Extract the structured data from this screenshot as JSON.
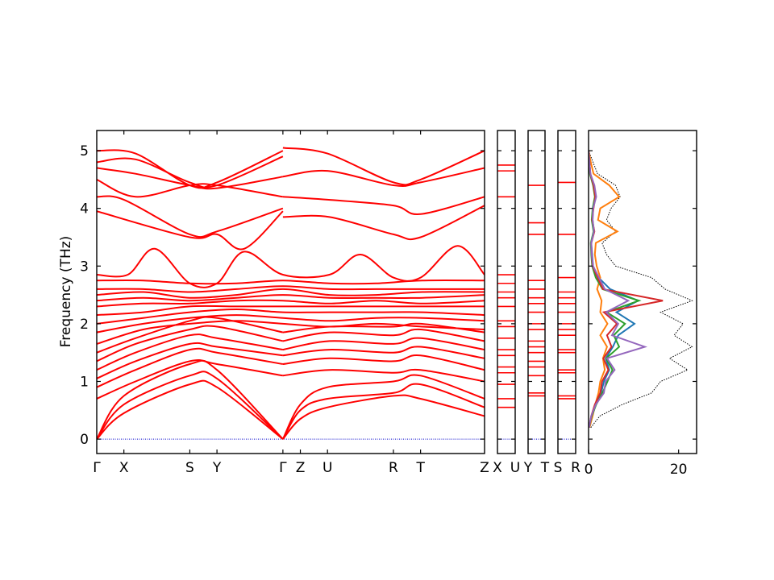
{
  "chart_data": {
    "type": "line",
    "ylabel": "Frequency (THz)",
    "ylim": [
      -0.25,
      5.35
    ],
    "yticks": [
      0,
      1,
      2,
      3,
      4,
      5
    ],
    "colors": {
      "bands": "#ff0000",
      "zero_line": "#0000cc",
      "dos_total": "#000000",
      "pdos": [
        "#1f77b4",
        "#ff7f0e",
        "#2ca02c",
        "#d62728",
        "#9467bd"
      ]
    },
    "band_panels": [
      {
        "labels": [
          "Γ",
          "X",
          "S",
          "Y",
          "Γ",
          "Z",
          "U",
          "R",
          "T",
          "Z"
        ],
        "label_pos": [
          0,
          0.07,
          0.24,
          0.31,
          0.48,
          0.525,
          0.595,
          0.765,
          0.835,
          1
        ]
      },
      {
        "labels": [
          "X",
          "U"
        ],
        "label_pos": [
          0,
          1
        ]
      },
      {
        "labels": [
          "Y",
          "T"
        ],
        "label_pos": [
          0,
          1
        ]
      },
      {
        "labels": [
          "S",
          "R"
        ],
        "label_pos": [
          0,
          1
        ]
      }
    ],
    "band_series": [
      {
        "k": [
          0,
          0.07,
          0.24,
          0.31,
          0.48
        ],
        "freq": [
          0.0,
          0.45,
          0.95,
          0.9,
          0.0
        ]
      },
      {
        "k": [
          0,
          0.07,
          0.24,
          0.31,
          0.48
        ],
        "freq": [
          0.0,
          0.6,
          1.1,
          1.05,
          0.0
        ]
      },
      {
        "k": [
          0,
          0.07,
          0.24,
          0.31,
          0.48
        ],
        "freq": [
          0.0,
          0.75,
          1.3,
          1.2,
          0.0
        ]
      },
      {
        "k": [
          0.48,
          0.525,
          0.595,
          0.765,
          0.835,
          1
        ],
        "freq": [
          0.0,
          0.35,
          0.55,
          0.75,
          0.7,
          0.4
        ]
      },
      {
        "k": [
          0.48,
          0.525,
          0.595,
          0.765,
          0.835,
          1
        ],
        "freq": [
          0.0,
          0.5,
          0.7,
          0.8,
          0.95,
          0.55
        ]
      },
      {
        "k": [
          0.48,
          0.525,
          0.595,
          0.765,
          0.835,
          1
        ],
        "freq": [
          0.0,
          0.6,
          0.9,
          1.0,
          1.1,
          0.7
        ]
      },
      {
        "k": [
          0,
          0.1,
          0.24,
          0.31,
          0.48
        ],
        "freq": [
          0.7,
          1.0,
          1.35,
          1.3,
          1.1
        ]
      },
      {
        "k": [
          0,
          0.1,
          0.24,
          0.31,
          0.48
        ],
        "freq": [
          0.9,
          1.2,
          1.55,
          1.5,
          1.3
        ]
      },
      {
        "k": [
          0,
          0.1,
          0.24,
          0.31,
          0.48
        ],
        "freq": [
          1.05,
          1.35,
          1.65,
          1.6,
          1.45
        ]
      },
      {
        "k": [
          0,
          0.1,
          0.24,
          0.31,
          0.48
        ],
        "freq": [
          1.2,
          1.5,
          1.8,
          1.75,
          1.55
        ]
      },
      {
        "k": [
          0,
          0.1,
          0.24,
          0.31,
          0.48
        ],
        "freq": [
          1.35,
          1.65,
          1.9,
          1.95,
          1.7
        ]
      },
      {
        "k": [
          0,
          0.1,
          0.24,
          0.31,
          0.48
        ],
        "freq": [
          1.5,
          1.75,
          2.05,
          2.1,
          1.85
        ]
      },
      {
        "k": [
          0.48,
          0.6,
          0.765,
          0.835,
          1
        ],
        "freq": [
          1.1,
          1.2,
          1.15,
          1.2,
          1.0
        ]
      },
      {
        "k": [
          0.48,
          0.6,
          0.765,
          0.835,
          1
        ],
        "freq": [
          1.3,
          1.4,
          1.35,
          1.45,
          1.2
        ]
      },
      {
        "k": [
          0.48,
          0.6,
          0.765,
          0.835,
          1
        ],
        "freq": [
          1.45,
          1.55,
          1.5,
          1.6,
          1.4
        ]
      },
      {
        "k": [
          0.48,
          0.6,
          0.765,
          0.835,
          1
        ],
        "freq": [
          1.55,
          1.7,
          1.65,
          1.75,
          1.55
        ]
      },
      {
        "k": [
          0.48,
          0.6,
          0.765,
          0.835,
          1
        ],
        "freq": [
          1.7,
          1.85,
          1.8,
          1.9,
          1.7
        ]
      },
      {
        "k": [
          0.48,
          0.6,
          0.765,
          0.835,
          1
        ],
        "freq": [
          1.85,
          1.95,
          1.95,
          2.0,
          1.85
        ]
      },
      {
        "k": [
          0,
          0.12,
          0.24,
          0.36,
          0.48,
          0.6,
          0.72,
          0.84,
          1
        ],
        "freq": [
          1.65,
          1.9,
          2.0,
          2.05,
          2.0,
          1.95,
          2.0,
          1.95,
          1.9
        ]
      },
      {
        "k": [
          0,
          0.12,
          0.24,
          0.36,
          0.48,
          0.6,
          0.72,
          0.84,
          1
        ],
        "freq": [
          1.85,
          2.0,
          2.1,
          2.15,
          2.1,
          2.05,
          2.1,
          2.1,
          2.05
        ]
      },
      {
        "k": [
          0,
          0.12,
          0.24,
          0.36,
          0.48,
          0.6,
          0.72,
          0.84,
          1
        ],
        "freq": [
          2.0,
          2.1,
          2.2,
          2.25,
          2.2,
          2.2,
          2.2,
          2.2,
          2.15
        ]
      },
      {
        "k": [
          0,
          0.12,
          0.24,
          0.36,
          0.48,
          0.6,
          0.72,
          0.84,
          1
        ],
        "freq": [
          2.15,
          2.2,
          2.3,
          2.3,
          2.3,
          2.3,
          2.3,
          2.3,
          2.3
        ]
      },
      {
        "k": [
          0,
          0.12,
          0.24,
          0.36,
          0.48,
          0.6,
          0.72,
          0.84,
          1
        ],
        "freq": [
          2.3,
          2.35,
          2.35,
          2.4,
          2.4,
          2.35,
          2.4,
          2.35,
          2.4
        ]
      },
      {
        "k": [
          0,
          0.12,
          0.24,
          0.36,
          0.48,
          0.6,
          0.72,
          0.84,
          1
        ],
        "freq": [
          2.4,
          2.45,
          2.4,
          2.45,
          2.5,
          2.45,
          2.45,
          2.45,
          2.5
        ]
      },
      {
        "k": [
          0,
          0.12,
          0.24,
          0.36,
          0.48,
          0.6,
          0.72,
          0.84,
          1
        ],
        "freq": [
          2.5,
          2.55,
          2.45,
          2.5,
          2.6,
          2.5,
          2.5,
          2.55,
          2.55
        ]
      },
      {
        "k": [
          0,
          0.12,
          0.24,
          0.36,
          0.48,
          0.6,
          0.72,
          0.84,
          1
        ],
        "freq": [
          2.6,
          2.6,
          2.55,
          2.6,
          2.65,
          2.6,
          2.6,
          2.6,
          2.6
        ]
      },
      {
        "k": [
          0,
          0.12,
          0.24,
          0.36,
          0.48,
          0.6,
          0.72,
          0.84,
          1
        ],
        "freq": [
          2.75,
          2.75,
          2.7,
          2.7,
          2.75,
          2.7,
          2.7,
          2.75,
          2.75
        ]
      },
      {
        "k": [
          0,
          0.08,
          0.15,
          0.24,
          0.31,
          0.38,
          0.48,
          0.6,
          0.68,
          0.765,
          0.835,
          0.93,
          1
        ],
        "freq": [
          2.85,
          2.85,
          3.3,
          2.7,
          2.7,
          3.25,
          2.85,
          2.85,
          3.2,
          2.8,
          2.8,
          3.35,
          2.85
        ]
      },
      {
        "k": [
          0,
          0.24,
          0.31,
          0.38,
          0.48
        ],
        "freq": [
          3.95,
          3.5,
          3.55,
          3.3,
          3.95
        ]
      },
      {
        "k": [
          0.48,
          0.6,
          0.765,
          0.835,
          1
        ],
        "freq": [
          3.85,
          3.85,
          3.55,
          3.5,
          4.05
        ]
      },
      {
        "k": [
          0,
          0.07,
          0.24,
          0.31,
          0.48
        ],
        "freq": [
          4.2,
          4.15,
          3.55,
          3.6,
          4.0
        ]
      },
      {
        "k": [
          0,
          0.1,
          0.24,
          0.31,
          0.48
        ],
        "freq": [
          4.5,
          4.2,
          4.4,
          4.4,
          4.2
        ]
      },
      {
        "k": [
          0.48,
          0.595,
          0.765,
          0.835,
          1
        ],
        "freq": [
          4.2,
          4.15,
          4.05,
          3.9,
          4.2
        ]
      },
      {
        "k": [
          0,
          0.1,
          0.24,
          0.31,
          0.48
        ],
        "freq": [
          4.7,
          4.6,
          4.4,
          4.35,
          4.55
        ]
      },
      {
        "k": [
          0.48,
          0.595,
          0.765,
          0.835,
          1
        ],
        "freq": [
          4.55,
          4.65,
          4.4,
          4.45,
          4.7
        ]
      },
      {
        "k": [
          0,
          0.1,
          0.24,
          0.31,
          0.48
        ],
        "freq": [
          4.8,
          4.85,
          4.45,
          4.4,
          4.9
        ]
      },
      {
        "k": [
          0,
          0.1,
          0.24,
          0.31,
          0.48
        ],
        "freq": [
          5.0,
          4.95,
          4.4,
          4.45,
          5.0
        ]
      },
      {
        "k": [
          0.48,
          0.595,
          0.765,
          0.835,
          1
        ],
        "freq": [
          5.05,
          4.95,
          4.45,
          4.5,
          5.0
        ]
      }
    ],
    "narrow_panel_freqs": [
      [
        0.55,
        0.7,
        0.95,
        1.15,
        1.25,
        1.45,
        1.55,
        1.75,
        1.95,
        2.05,
        2.3,
        2.45,
        2.55,
        2.7,
        2.85,
        4.2,
        4.65,
        4.75
      ],
      [
        0.75,
        0.8,
        1.1,
        1.25,
        1.35,
        1.5,
        1.6,
        1.7,
        1.9,
        2.0,
        2.2,
        2.35,
        2.45,
        2.6,
        2.75,
        3.55,
        3.75,
        4.4
      ],
      [
        0.7,
        0.75,
        1.15,
        1.2,
        1.5,
        1.55,
        1.8,
        1.9,
        2.0,
        2.2,
        2.35,
        2.45,
        2.55,
        2.8,
        3.55,
        4.45
      ]
    ],
    "dos": {
      "xlim": [
        0,
        24
      ],
      "xticks": [
        0,
        20
      ],
      "freq": [
        0.2,
        0.4,
        0.6,
        0.8,
        1.0,
        1.2,
        1.4,
        1.6,
        1.8,
        2.0,
        2.2,
        2.4,
        2.6,
        2.8,
        3.0,
        3.2,
        3.4,
        3.6,
        3.8,
        4.0,
        4.2,
        4.4,
        4.6,
        4.8,
        5.0
      ],
      "total": [
        0.5,
        2.5,
        7.5,
        14,
        16,
        22,
        18,
        23,
        19,
        21,
        16,
        23,
        17,
        14,
        6,
        4,
        3,
        6,
        4,
        5,
        7,
        6,
        2,
        1,
        0
      ],
      "pdos": [
        [
          0.2,
          0.8,
          1.6,
          2.8,
          3.4,
          4.6,
          3.8,
          5.4,
          6.6,
          10.2,
          6.2,
          11.0,
          4.8,
          2.2,
          1.0,
          0.8,
          0.6,
          1.2,
          0.9,
          1.0,
          1.6,
          1.2,
          0.4,
          0.2,
          0.0
        ],
        [
          0.2,
          0.9,
          1.5,
          2.2,
          2.6,
          3.6,
          3.2,
          4.1,
          2.6,
          4.2,
          2.6,
          2.9,
          1.9,
          2.6,
          1.8,
          1.4,
          1.6,
          6.4,
          2.1,
          2.6,
          6.8,
          4.6,
          1.1,
          0.5,
          0.0
        ],
        [
          0.1,
          0.7,
          1.7,
          3.1,
          4.2,
          5.3,
          3.9,
          6.8,
          5.6,
          8.1,
          4.0,
          11.2,
          3.1,
          1.6,
          0.8,
          0.6,
          0.5,
          1.1,
          0.7,
          0.9,
          1.4,
          1.0,
          0.3,
          0.1,
          0.0
        ],
        [
          0.1,
          0.6,
          1.4,
          2.6,
          3.0,
          4.4,
          3.3,
          5.1,
          4.1,
          6.3,
          3.4,
          16.5,
          3.2,
          2.0,
          0.9,
          0.7,
          0.6,
          1.3,
          0.8,
          1.1,
          1.5,
          1.1,
          0.4,
          0.2,
          0.0
        ],
        [
          0.1,
          0.6,
          1.6,
          3.4,
          3.8,
          5.8,
          4.1,
          12.5,
          5.2,
          6.6,
          3.9,
          8.8,
          3.6,
          2.3,
          1.0,
          0.7,
          0.6,
          1.2,
          0.9,
          1.0,
          1.7,
          1.3,
          0.4,
          0.2,
          0.0
        ]
      ]
    }
  }
}
